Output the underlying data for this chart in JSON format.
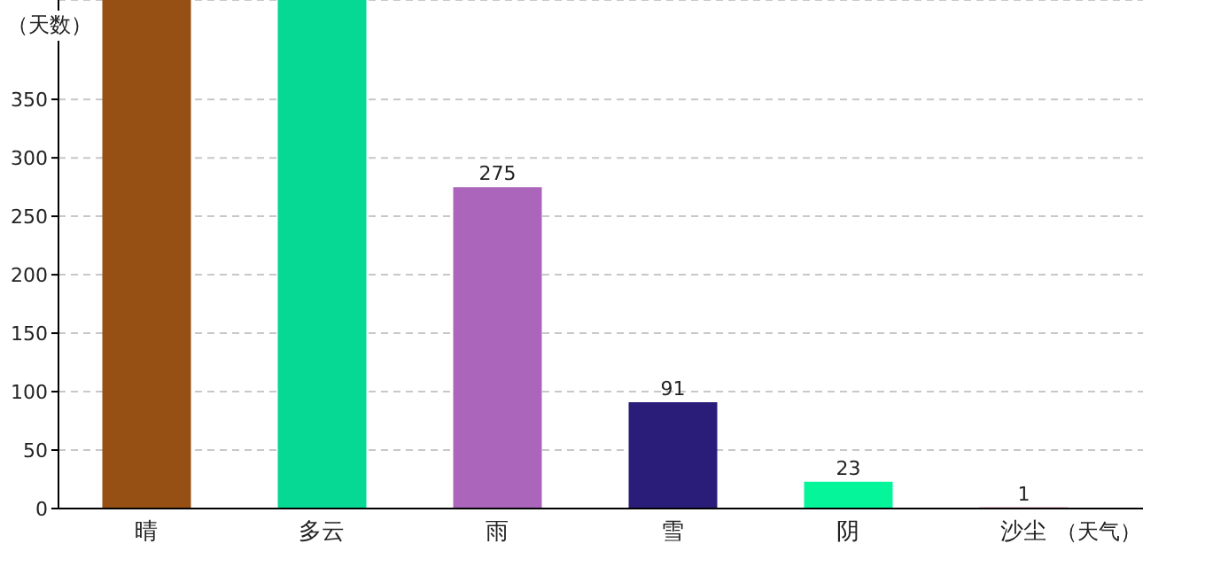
{
  "chart_data": {
    "type": "bar",
    "ylabel": "（天数）",
    "xlabel": "（天气）",
    "categories": [
      "晴",
      "多云",
      "雨",
      "雪",
      "阴",
      "沙尘"
    ],
    "values": [
      435,
      435,
      275,
      91,
      23,
      1
    ],
    "colors": [
      "#975013",
      "#05d994",
      "#ab66bb",
      "#2a1d7a",
      "#05f59b",
      "#d2245a"
    ],
    "value_labels": [
      null,
      null,
      "275",
      "91",
      "23",
      "1"
    ],
    "ylim": [
      0,
      435
    ],
    "yticks": [
      0,
      50,
      100,
      150,
      200,
      250,
      300,
      350
    ],
    "grid": "y"
  }
}
